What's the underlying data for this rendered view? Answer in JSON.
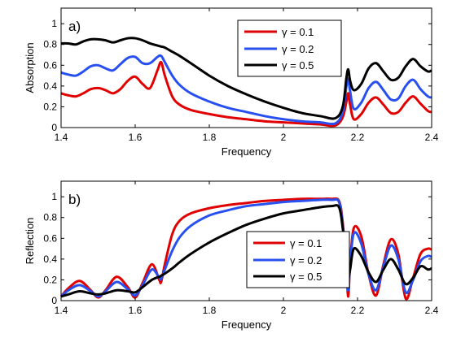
{
  "chart_data": [
    {
      "type": "line",
      "panel_label": "a)",
      "xlabel": "Frequency",
      "ylabel": "Absorption",
      "xlim": [
        1.4,
        2.4
      ],
      "ylim": [
        0,
        1.15
      ],
      "xticks": [
        1.4,
        1.6,
        1.8,
        2,
        2.2,
        2.4
      ],
      "xtick_labels": [
        "1.4",
        "1.6",
        "1.8",
        "2",
        "2.2",
        "2.4"
      ],
      "yticks": [
        0,
        0.2,
        0.4,
        0.6,
        0.8,
        1
      ],
      "ytick_labels": [
        "0",
        "0.2",
        "0.4",
        "0.6",
        "0.8",
        "1"
      ],
      "legend_position": "top-center",
      "grid": false,
      "series": [
        {
          "name": "γ = 0.1",
          "color": "#e00000",
          "x": [
            1.4,
            1.42,
            1.44,
            1.46,
            1.48,
            1.5,
            1.52,
            1.54,
            1.56,
            1.58,
            1.6,
            1.62,
            1.64,
            1.66,
            1.67,
            1.68,
            1.7,
            1.72,
            1.75,
            1.8,
            1.85,
            1.9,
            1.95,
            2.0,
            2.05,
            2.1,
            2.14,
            2.16,
            2.17,
            2.175,
            2.18,
            2.19,
            2.21,
            2.23,
            2.25,
            2.27,
            2.29,
            2.31,
            2.33,
            2.35,
            2.37,
            2.39,
            2.4
          ],
          "y": [
            0.33,
            0.31,
            0.3,
            0.33,
            0.37,
            0.38,
            0.36,
            0.33,
            0.37,
            0.45,
            0.49,
            0.42,
            0.38,
            0.55,
            0.63,
            0.5,
            0.3,
            0.22,
            0.17,
            0.13,
            0.1,
            0.08,
            0.06,
            0.05,
            0.04,
            0.03,
            0.02,
            0.1,
            0.25,
            0.33,
            0.22,
            0.08,
            0.13,
            0.24,
            0.29,
            0.22,
            0.14,
            0.15,
            0.24,
            0.3,
            0.23,
            0.16,
            0.15
          ]
        },
        {
          "name": "γ = 0.2",
          "color": "#2850f0",
          "x": [
            1.4,
            1.42,
            1.44,
            1.46,
            1.48,
            1.5,
            1.52,
            1.54,
            1.56,
            1.58,
            1.6,
            1.62,
            1.64,
            1.66,
            1.67,
            1.68,
            1.7,
            1.72,
            1.75,
            1.8,
            1.85,
            1.9,
            1.95,
            2.0,
            2.05,
            2.1,
            2.14,
            2.16,
            2.17,
            2.175,
            2.18,
            2.19,
            2.21,
            2.23,
            2.25,
            2.27,
            2.29,
            2.31,
            2.33,
            2.35,
            2.37,
            2.39,
            2.4
          ],
          "y": [
            0.53,
            0.51,
            0.5,
            0.54,
            0.59,
            0.6,
            0.57,
            0.55,
            0.61,
            0.67,
            0.68,
            0.62,
            0.62,
            0.68,
            0.69,
            0.63,
            0.5,
            0.41,
            0.33,
            0.25,
            0.19,
            0.15,
            0.11,
            0.08,
            0.06,
            0.05,
            0.04,
            0.15,
            0.4,
            0.47,
            0.35,
            0.18,
            0.24,
            0.38,
            0.44,
            0.36,
            0.27,
            0.28,
            0.4,
            0.46,
            0.37,
            0.3,
            0.29
          ]
        },
        {
          "name": "γ = 0.5",
          "color": "#000000",
          "x": [
            1.4,
            1.42,
            1.44,
            1.46,
            1.48,
            1.5,
            1.52,
            1.54,
            1.56,
            1.58,
            1.6,
            1.62,
            1.64,
            1.66,
            1.67,
            1.68,
            1.7,
            1.72,
            1.75,
            1.8,
            1.85,
            1.9,
            1.95,
            2.0,
            2.05,
            2.1,
            2.14,
            2.16,
            2.17,
            2.175,
            2.18,
            2.19,
            2.21,
            2.23,
            2.25,
            2.27,
            2.29,
            2.31,
            2.33,
            2.35,
            2.37,
            2.39,
            2.4
          ],
          "y": [
            0.81,
            0.81,
            0.8,
            0.83,
            0.85,
            0.85,
            0.84,
            0.82,
            0.84,
            0.86,
            0.86,
            0.84,
            0.81,
            0.79,
            0.78,
            0.77,
            0.73,
            0.69,
            0.62,
            0.5,
            0.4,
            0.32,
            0.25,
            0.19,
            0.14,
            0.11,
            0.09,
            0.2,
            0.48,
            0.56,
            0.45,
            0.36,
            0.42,
            0.57,
            0.62,
            0.54,
            0.46,
            0.48,
            0.59,
            0.66,
            0.59,
            0.54,
            0.55
          ]
        }
      ]
    },
    {
      "type": "line",
      "panel_label": "b)",
      "xlabel": "Frequency",
      "ylabel": "Reflection",
      "xlim": [
        1.4,
        2.4
      ],
      "ylim": [
        0,
        1.15
      ],
      "xticks": [
        1.4,
        1.6,
        1.8,
        2,
        2.2,
        2.4
      ],
      "xtick_labels": [
        "1.4",
        "1.6",
        "1.8",
        "2",
        "2.2",
        "2.4"
      ],
      "yticks": [
        0,
        0.2,
        0.4,
        0.6,
        0.8,
        1
      ],
      "ytick_labels": [
        "0",
        "0.2",
        "0.4",
        "0.6",
        "0.8",
        "1"
      ],
      "legend_position": "bottom-right",
      "grid": false,
      "series": [
        {
          "name": "γ = 0.1",
          "color": "#e00000",
          "x": [
            1.4,
            1.42,
            1.45,
            1.48,
            1.5,
            1.52,
            1.55,
            1.58,
            1.6,
            1.62,
            1.645,
            1.665,
            1.67,
            1.68,
            1.7,
            1.72,
            1.75,
            1.8,
            1.85,
            1.9,
            1.95,
            2.0,
            2.05,
            2.1,
            2.13,
            2.15,
            2.16,
            2.17,
            2.175,
            2.18,
            2.19,
            2.21,
            2.23,
            2.25,
            2.27,
            2.29,
            2.31,
            2.33,
            2.35,
            2.37,
            2.39,
            2.4
          ],
          "y": [
            0.04,
            0.12,
            0.19,
            0.1,
            0.03,
            0.1,
            0.23,
            0.13,
            0.03,
            0.17,
            0.35,
            0.2,
            0.18,
            0.35,
            0.64,
            0.77,
            0.84,
            0.89,
            0.92,
            0.94,
            0.96,
            0.97,
            0.98,
            0.98,
            0.98,
            0.96,
            0.75,
            0.3,
            0.04,
            0.36,
            0.7,
            0.62,
            0.25,
            0.05,
            0.35,
            0.59,
            0.45,
            0.02,
            0.22,
            0.45,
            0.5,
            0.49
          ]
        },
        {
          "name": "γ = 0.2",
          "color": "#2850f0",
          "x": [
            1.4,
            1.42,
            1.45,
            1.48,
            1.5,
            1.52,
            1.55,
            1.58,
            1.6,
            1.62,
            1.645,
            1.665,
            1.67,
            1.68,
            1.7,
            1.72,
            1.75,
            1.8,
            1.85,
            1.9,
            1.95,
            2.0,
            2.05,
            2.1,
            2.13,
            2.15,
            2.16,
            2.17,
            2.175,
            2.18,
            2.19,
            2.21,
            2.23,
            2.25,
            2.27,
            2.29,
            2.31,
            2.33,
            2.35,
            2.37,
            2.39,
            2.4
          ],
          "y": [
            0.04,
            0.1,
            0.15,
            0.09,
            0.04,
            0.09,
            0.18,
            0.11,
            0.05,
            0.15,
            0.3,
            0.22,
            0.21,
            0.3,
            0.48,
            0.61,
            0.72,
            0.82,
            0.87,
            0.91,
            0.93,
            0.95,
            0.96,
            0.97,
            0.97,
            0.95,
            0.72,
            0.3,
            0.1,
            0.35,
            0.65,
            0.55,
            0.25,
            0.1,
            0.33,
            0.53,
            0.4,
            0.08,
            0.2,
            0.38,
            0.43,
            0.42
          ]
        },
        {
          "name": "γ = 0.5",
          "color": "#000000",
          "x": [
            1.4,
            1.42,
            1.45,
            1.48,
            1.5,
            1.52,
            1.55,
            1.58,
            1.6,
            1.62,
            1.645,
            1.665,
            1.67,
            1.68,
            1.7,
            1.72,
            1.75,
            1.8,
            1.85,
            1.9,
            1.95,
            2.0,
            2.05,
            2.1,
            2.13,
            2.15,
            2.16,
            2.17,
            2.175,
            2.18,
            2.19,
            2.21,
            2.23,
            2.25,
            2.27,
            2.29,
            2.31,
            2.33,
            2.35,
            2.37,
            2.39,
            2.4
          ],
          "y": [
            0.04,
            0.06,
            0.09,
            0.07,
            0.06,
            0.07,
            0.1,
            0.09,
            0.08,
            0.13,
            0.2,
            0.23,
            0.24,
            0.26,
            0.31,
            0.37,
            0.45,
            0.56,
            0.65,
            0.73,
            0.79,
            0.84,
            0.87,
            0.9,
            0.91,
            0.9,
            0.7,
            0.35,
            0.22,
            0.3,
            0.5,
            0.43,
            0.27,
            0.18,
            0.3,
            0.4,
            0.3,
            0.16,
            0.22,
            0.33,
            0.3,
            0.31
          ]
        }
      ]
    }
  ]
}
